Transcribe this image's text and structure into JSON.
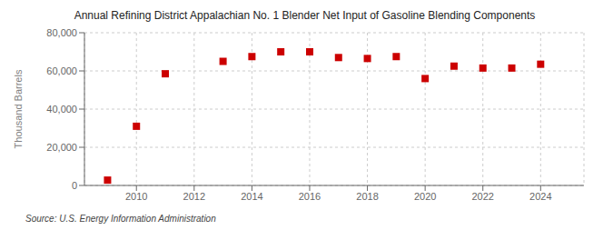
{
  "chart_data": {
    "type": "scatter",
    "title": "Annual Refining District Appalachian No. 1 Blender Net Input of Gasoline Blending Components",
    "y_label": "Thousand Barrels",
    "annotations": [
      "Source: U.S. Energy Information Administration"
    ],
    "x": [
      2009,
      2010,
      2011,
      2013,
      2014,
      2015,
      2016,
      2017,
      2018,
      2019,
      2020,
      2021,
      2022,
      2023,
      2024
    ],
    "values": [
      2800,
      31000,
      58500,
      65000,
      67500,
      70000,
      70000,
      67000,
      66500,
      67500,
      56000,
      62500,
      61500,
      61500,
      63500
    ],
    "color": "#cc0000",
    "marker": "square",
    "xlim": [
      2008.2,
      2025.5
    ],
    "xticks": [
      2010,
      2012,
      2014,
      2016,
      2018,
      2020,
      2022,
      2024
    ],
    "ylim": [
      0,
      80000
    ],
    "yticks": [
      0,
      {
        "value": 20000,
        "label": "20,000"
      },
      {
        "value": 40000,
        "label": "40,000"
      },
      {
        "value": 60000,
        "label": "60,000"
      },
      {
        "value": 80000,
        "label": "80,000"
      }
    ],
    "grid": true
  }
}
